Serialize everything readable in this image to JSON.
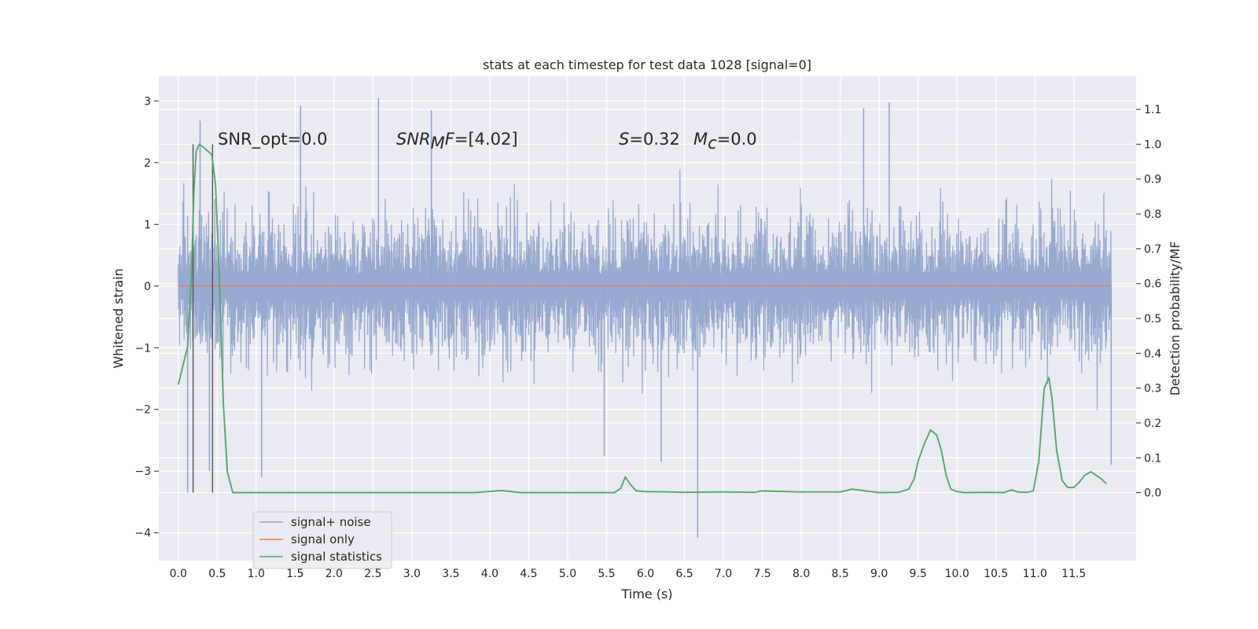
{
  "chart_data": {
    "type": "line",
    "title": "stats at each timestep for test data 1028 [signal=0]",
    "xlabel": "Time (s)",
    "ylabel": "Whitened strain",
    "y2label": "Detection probability/MF",
    "xlim": [
      -0.25,
      12.3
    ],
    "ylim": [
      -4.45,
      3.4
    ],
    "y2lim": [
      -0.195,
      1.195
    ],
    "x_ticks": [
      "0.0",
      "0.5",
      "1.0",
      "1.5",
      "2.0",
      "2.5",
      "3.0",
      "3.5",
      "4.0",
      "4.5",
      "5.0",
      "5.5",
      "6.0",
      "6.5",
      "7.0",
      "7.5",
      "8.0",
      "8.5",
      "9.0",
      "9.5",
      "10.0",
      "10.5",
      "11.0",
      "11.5"
    ],
    "y_ticks": [
      "3",
      "2",
      "1",
      "0",
      "−1",
      "−2",
      "−3",
      "−4"
    ],
    "y2_ticks": [
      "1.1",
      "1.0",
      "0.9",
      "0.8",
      "0.7",
      "0.6",
      "0.5",
      "0.4",
      "0.3",
      "0.2",
      "0.1",
      "0.0"
    ],
    "grid": true,
    "legend_position": "lower-left",
    "annotations": {
      "snr_opt": "SNR_opt=0.0",
      "snr_mf_var": "SNR",
      "snr_mf_sub": "M",
      "snr_mf_tail": "F",
      "snr_mf_value": "=[4.02]",
      "s_var": "S",
      "s_value": "=0.32",
      "mc_var": "M",
      "mc_sub": "c",
      "mc_value": "=0.0"
    },
    "vertical_markers_x": [
      0.19,
      0.44
    ],
    "series": [
      {
        "name": "signal+ noise",
        "color": "#92a6cf",
        "x_range": [
          0.0,
          11.98
        ],
        "band": [
          -1.3,
          1.2
        ],
        "typical_peak": [
          -2.3,
          2.0
        ],
        "spikes": [
          {
            "x": 0.12,
            "y": -3.35
          },
          {
            "x": 0.28,
            "y": 2.68
          },
          {
            "x": 0.4,
            "y": -3.0
          },
          {
            "x": 1.07,
            "y": -3.1
          },
          {
            "x": 1.57,
            "y": 2.92
          },
          {
            "x": 2.57,
            "y": 3.05
          },
          {
            "x": 3.25,
            "y": 2.85
          },
          {
            "x": 5.47,
            "y": -2.75
          },
          {
            "x": 6.2,
            "y": -2.85
          },
          {
            "x": 6.67,
            "y": -4.08
          },
          {
            "x": 8.8,
            "y": 2.88
          },
          {
            "x": 9.13,
            "y": 2.98
          },
          {
            "x": 11.98,
            "y": -2.9
          }
        ]
      },
      {
        "name": "signal only",
        "color": "#dd8452",
        "x": [
          0.0,
          11.98
        ],
        "y": [
          0.0,
          0.0
        ]
      },
      {
        "name": "signal statistics",
        "color": "#55a868",
        "axis": "right",
        "x": [
          0.0,
          0.12,
          0.17,
          0.2,
          0.23,
          0.27,
          0.33,
          0.38,
          0.43,
          0.48,
          0.53,
          0.58,
          0.63,
          0.7,
          1.0,
          2.0,
          3.0,
          3.8,
          4.15,
          4.4,
          5.0,
          5.6,
          5.68,
          5.74,
          5.8,
          5.88,
          6.0,
          6.3,
          6.5,
          7.0,
          7.4,
          7.5,
          8.0,
          8.5,
          8.65,
          8.8,
          9.0,
          9.25,
          9.38,
          9.45,
          9.5,
          9.58,
          9.66,
          9.74,
          9.8,
          9.86,
          9.92,
          10.0,
          10.1,
          10.4,
          10.6,
          10.7,
          10.78,
          10.9,
          10.98,
          11.05,
          11.12,
          11.18,
          11.22,
          11.28,
          11.35,
          11.42,
          11.5,
          11.57,
          11.64,
          11.72,
          11.85,
          11.92
        ],
        "y": [
          0.31,
          0.42,
          0.63,
          0.86,
          0.98,
          1.0,
          0.99,
          0.98,
          0.97,
          0.88,
          0.6,
          0.25,
          0.06,
          0.0,
          0.0,
          0.0,
          0.0,
          0.0,
          0.006,
          0.0,
          0.0,
          0.0,
          0.012,
          0.045,
          0.025,
          0.005,
          0.003,
          0.002,
          0.001,
          0.002,
          0.001,
          0.005,
          0.002,
          0.002,
          0.01,
          0.006,
          0.0,
          0.001,
          0.01,
          0.04,
          0.09,
          0.14,
          0.18,
          0.165,
          0.12,
          0.05,
          0.01,
          0.003,
          0.0,
          0.001,
          0.0,
          0.008,
          0.002,
          0.001,
          0.005,
          0.09,
          0.3,
          0.33,
          0.27,
          0.12,
          0.035,
          0.015,
          0.015,
          0.03,
          0.05,
          0.06,
          0.04,
          0.025
        ]
      }
    ]
  }
}
